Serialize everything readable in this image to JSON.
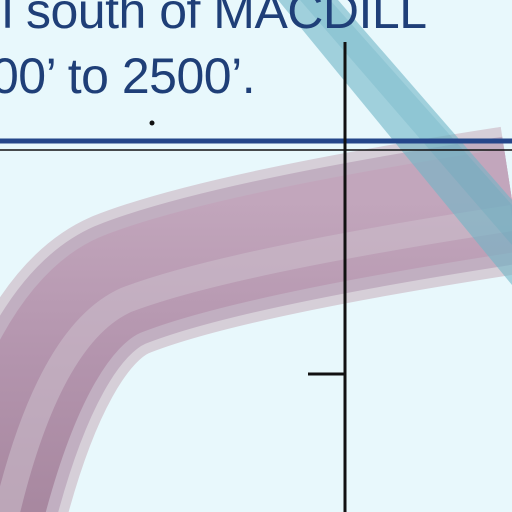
{
  "map": {
    "note": {
      "line_1": "l south of MACDILL",
      "line_2": "00’ to 2500’."
    },
    "colors": {
      "background": "#e8f8fc",
      "text": "#1f3f78",
      "boundary_line": "#24468a",
      "route_band": "#b596ae",
      "route_band_highlight": "#cfc5cf",
      "route_band_shadow": "#a8899f",
      "teal_band": "#7fbfcc",
      "axis_line": "#111111"
    }
  }
}
